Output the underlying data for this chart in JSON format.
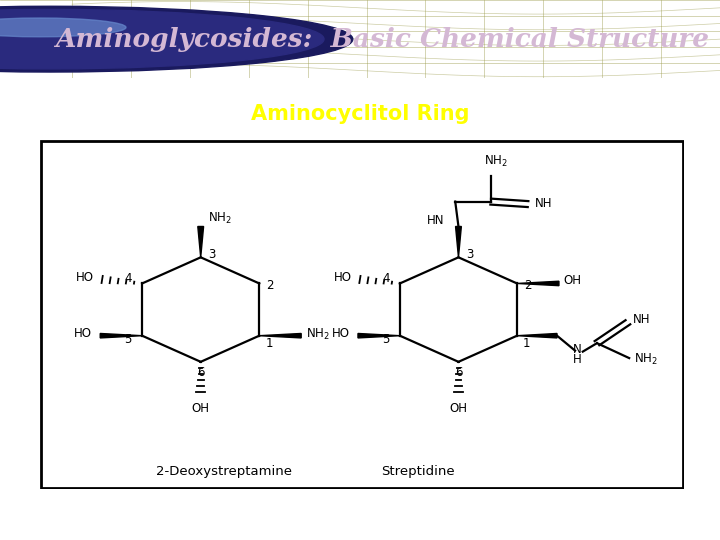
{
  "title": "Aminoglycosides:  Basic Chemical Structure",
  "subtitle": "Aminocyclitol Ring",
  "title_color": "#D4B8D4",
  "subtitle_color": "#FFFF00",
  "header_bg": "#8B8B3C",
  "green_bar_color": "#22BB22",
  "pink_bar_color": "#EE88BB",
  "bg_color": "#FFFFFF",
  "box_bg": "#FFFFFF",
  "label_2deoxystreptamine": "2-Deoxystreptamine",
  "label_streptidine": "Streptidine"
}
